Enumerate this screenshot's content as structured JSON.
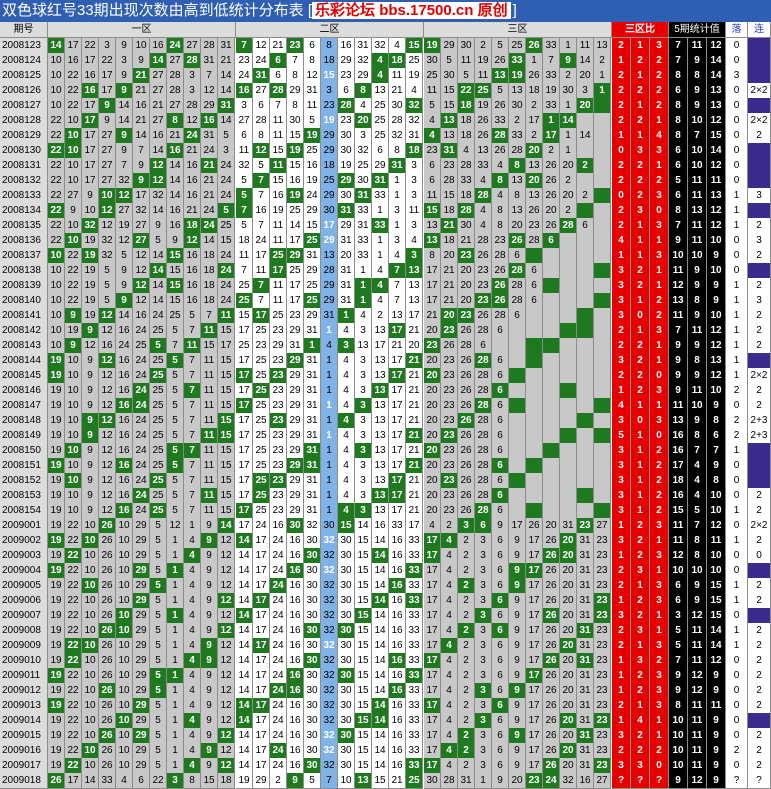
{
  "title": {
    "prefix": "双色球红号33期出现次数由高到低统计分布表 [",
    "brand": "乐彩论坛 bbs.17500.cn 原创",
    "suffix": "]"
  },
  "headers": {
    "issue": "期号",
    "zone1": "一区",
    "zone2": "二区",
    "zone3": "三区",
    "ratio": "三区比",
    "stat5": "5期统计值",
    "luo": "落",
    "lian": "连"
  },
  "rows": [
    {
      "issue": "2008123",
      "ratio": [
        "2",
        "1",
        "3"
      ],
      "stat": [
        "7",
        "11",
        "12"
      ],
      "luo": "0",
      "lian": ""
    },
    {
      "issue": "2008124",
      "ratio": [
        "1",
        "2",
        "2"
      ],
      "stat": [
        "7",
        "9",
        "14"
      ],
      "luo": "0",
      "lian": ""
    },
    {
      "issue": "2008125",
      "ratio": [
        "2",
        "1",
        "2"
      ],
      "stat": [
        "8",
        "8",
        "14"
      ],
      "luo": "3",
      "lian": ""
    },
    {
      "issue": "2008126",
      "ratio": [
        "2",
        "2",
        "2"
      ],
      "stat": [
        "6",
        "9",
        "13"
      ],
      "luo": "0",
      "lian": "2×2"
    },
    {
      "issue": "2008127",
      "ratio": [
        "2",
        "1",
        "2"
      ],
      "stat": [
        "8",
        "9",
        "13"
      ],
      "luo": "0",
      "lian": ""
    },
    {
      "issue": "2008128",
      "ratio": [
        "2",
        "2",
        "1"
      ],
      "stat": [
        "8",
        "10",
        "12"
      ],
      "luo": "0",
      "lian": "2×2"
    },
    {
      "issue": "2008129",
      "ratio": [
        "1",
        "1",
        "4"
      ],
      "stat": [
        "8",
        "7",
        "15"
      ],
      "luo": "0",
      "lian": "2"
    },
    {
      "issue": "2008130",
      "ratio": [
        "0",
        "3",
        "3"
      ],
      "stat": [
        "6",
        "10",
        "14"
      ],
      "luo": "0",
      "lian": ""
    },
    {
      "issue": "2008131",
      "ratio": [
        "2",
        "2",
        "1"
      ],
      "stat": [
        "6",
        "10",
        "12"
      ],
      "luo": "0",
      "lian": ""
    },
    {
      "issue": "2008132",
      "ratio": [
        "2",
        "2",
        "2"
      ],
      "stat": [
        "5",
        "11",
        "11"
      ],
      "luo": "0",
      "lian": ""
    },
    {
      "issue": "2008133",
      "ratio": [
        "0",
        "2",
        "3"
      ],
      "stat": [
        "6",
        "11",
        "13"
      ],
      "luo": "1",
      "lian": "3"
    },
    {
      "issue": "2008134",
      "ratio": [
        "2",
        "3",
        "0"
      ],
      "stat": [
        "8",
        "13",
        "12"
      ],
      "luo": "1",
      "lian": ""
    },
    {
      "issue": "2008135",
      "ratio": [
        "2",
        "1",
        "3"
      ],
      "stat": [
        "7",
        "11",
        "12"
      ],
      "luo": "1",
      "lian": "2"
    },
    {
      "issue": "2008136",
      "ratio": [
        "4",
        "1",
        "1"
      ],
      "stat": [
        "9",
        "11",
        "10"
      ],
      "luo": "0",
      "lian": "3"
    },
    {
      "issue": "2008137",
      "ratio": [
        "1",
        "1",
        "3"
      ],
      "stat": [
        "10",
        "10",
        "9"
      ],
      "luo": "0",
      "lian": "2"
    },
    {
      "issue": "2008138",
      "ratio": [
        "3",
        "2",
        "1"
      ],
      "stat": [
        "11",
        "9",
        "10"
      ],
      "luo": "0",
      "lian": ""
    },
    {
      "issue": "2008139",
      "ratio": [
        "3",
        "2",
        "1"
      ],
      "stat": [
        "12",
        "9",
        "9"
      ],
      "luo": "1",
      "lian": "2"
    },
    {
      "issue": "2008140",
      "ratio": [
        "3",
        "1",
        "2"
      ],
      "stat": [
        "13",
        "8",
        "9"
      ],
      "luo": "1",
      "lian": "3"
    },
    {
      "issue": "2008141",
      "ratio": [
        "3",
        "0",
        "2"
      ],
      "stat": [
        "11",
        "9",
        "10"
      ],
      "luo": "1",
      "lian": "2"
    },
    {
      "issue": "2008142",
      "ratio": [
        "2",
        "1",
        "3"
      ],
      "stat": [
        "7",
        "11",
        "12"
      ],
      "luo": "1",
      "lian": "2"
    },
    {
      "issue": "2008143",
      "ratio": [
        "2",
        "2",
        "1"
      ],
      "stat": [
        "9",
        "9",
        "12"
      ],
      "luo": "1",
      "lian": "2"
    },
    {
      "issue": "2008144",
      "ratio": [
        "3",
        "2",
        "1"
      ],
      "stat": [
        "9",
        "8",
        "13"
      ],
      "luo": "1",
      "lian": ""
    },
    {
      "issue": "2008145",
      "ratio": [
        "2",
        "2",
        "0"
      ],
      "stat": [
        "9",
        "9",
        "12"
      ],
      "luo": "1",
      "lian": "2×2"
    },
    {
      "issue": "2008146",
      "ratio": [
        "1",
        "2",
        "3"
      ],
      "stat": [
        "9",
        "11",
        "10"
      ],
      "luo": "2",
      "lian": "2"
    },
    {
      "issue": "2008147",
      "ratio": [
        "4",
        "1",
        "1"
      ],
      "stat": [
        "11",
        "10",
        "9"
      ],
      "luo": "0",
      "lian": "2"
    },
    {
      "issue": "2008148",
      "ratio": [
        "3",
        "0",
        "3"
      ],
      "stat": [
        "13",
        "9",
        "8"
      ],
      "luo": "2",
      "lian": "2+3"
    },
    {
      "issue": "2008149",
      "ratio": [
        "5",
        "1",
        "0"
      ],
      "stat": [
        "16",
        "8",
        "6"
      ],
      "luo": "2",
      "lian": "2+3"
    },
    {
      "issue": "2008150",
      "ratio": [
        "3",
        "1",
        "2"
      ],
      "stat": [
        "16",
        "7",
        "7"
      ],
      "luo": "1",
      "lian": ""
    },
    {
      "issue": "2008151",
      "ratio": [
        "3",
        "1",
        "2"
      ],
      "stat": [
        "17",
        "4",
        "9"
      ],
      "luo": "0",
      "lian": ""
    },
    {
      "issue": "2008152",
      "ratio": [
        "3",
        "1",
        "2"
      ],
      "stat": [
        "18",
        "4",
        "8"
      ],
      "luo": "0",
      "lian": ""
    },
    {
      "issue": "2008153",
      "ratio": [
        "3",
        "1",
        "2"
      ],
      "stat": [
        "16",
        "4",
        "10"
      ],
      "luo": "0",
      "lian": "2"
    },
    {
      "issue": "2008154",
      "ratio": [
        "3",
        "1",
        "2"
      ],
      "stat": [
        "15",
        "5",
        "10"
      ],
      "luo": "1",
      "lian": "2"
    },
    {
      "issue": "2009001",
      "ratio": [
        "1",
        "2",
        "3"
      ],
      "stat": [
        "11",
        "7",
        "12"
      ],
      "luo": "0",
      "lian": "2×2"
    },
    {
      "issue": "2009002",
      "ratio": [
        "3",
        "2",
        "1"
      ],
      "stat": [
        "11",
        "8",
        "11"
      ],
      "luo": "1",
      "lian": "2"
    },
    {
      "issue": "2009003",
      "ratio": [
        "1",
        "2",
        "3"
      ],
      "stat": [
        "12",
        "8",
        "10"
      ],
      "luo": "0",
      "lian": "0"
    },
    {
      "issue": "2009004",
      "ratio": [
        "2",
        "3",
        "1"
      ],
      "stat": [
        "10",
        "10",
        "10"
      ],
      "luo": "0",
      "lian": ""
    },
    {
      "issue": "2009005",
      "ratio": [
        "2",
        "1",
        "3"
      ],
      "stat": [
        "6",
        "9",
        "15"
      ],
      "luo": "1",
      "lian": "2"
    },
    {
      "issue": "2009006",
      "ratio": [
        "1",
        "2",
        "3"
      ],
      "stat": [
        "6",
        "9",
        "15"
      ],
      "luo": "1",
      "lian": "2"
    },
    {
      "issue": "2009007",
      "ratio": [
        "3",
        "2",
        "1"
      ],
      "stat": [
        "3",
        "12",
        "15"
      ],
      "luo": "0",
      "lian": ""
    },
    {
      "issue": "2009008",
      "ratio": [
        "2",
        "3",
        "1"
      ],
      "stat": [
        "5",
        "11",
        "14"
      ],
      "luo": "1",
      "lian": "2"
    },
    {
      "issue": "2009009",
      "ratio": [
        "2",
        "1",
        "3"
      ],
      "stat": [
        "5",
        "11",
        "14"
      ],
      "luo": "1",
      "lian": "2"
    },
    {
      "issue": "2009010",
      "ratio": [
        "1",
        "3",
        "2"
      ],
      "stat": [
        "7",
        "11",
        "12"
      ],
      "luo": "0",
      "lian": "2"
    },
    {
      "issue": "2009011",
      "ratio": [
        "1",
        "2",
        "3"
      ],
      "stat": [
        "9",
        "12",
        "9"
      ],
      "luo": "0",
      "lian": "2"
    },
    {
      "issue": "2009012",
      "ratio": [
        "1",
        "2",
        "3"
      ],
      "stat": [
        "9",
        "12",
        "9"
      ],
      "luo": "0",
      "lian": "2"
    },
    {
      "issue": "2009013",
      "ratio": [
        "2",
        "1",
        "3"
      ],
      "stat": [
        "8",
        "11",
        "11"
      ],
      "luo": "0",
      "lian": "2"
    },
    {
      "issue": "2009014",
      "ratio": [
        "1",
        "4",
        "1"
      ],
      "stat": [
        "10",
        "11",
        "9"
      ],
      "luo": "0",
      "lian": ""
    },
    {
      "issue": "2009015",
      "ratio": [
        "3",
        "2",
        "1"
      ],
      "stat": [
        "10",
        "11",
        "9"
      ],
      "luo": "0",
      "lian": "2"
    },
    {
      "issue": "2009016",
      "ratio": [
        "2",
        "2",
        "2"
      ],
      "stat": [
        "10",
        "11",
        "9"
      ],
      "luo": "2",
      "lian": "2"
    },
    {
      "issue": "2009017",
      "ratio": [
        "3",
        "3",
        "0"
      ],
      "stat": [
        "10",
        "11",
        "9"
      ],
      "luo": "0",
      "lian": "2"
    },
    {
      "issue": "2009018",
      "ratio": [
        "?",
        "?",
        "?"
      ],
      "stat": [
        "9",
        "12",
        "9"
      ],
      "luo": "?",
      "lian": "?"
    }
  ],
  "grid_rows": [
    "14 17 22 3 9 10 16 24 27 28 31 7 12 21 23 6 8 16 31 32 4 15 19 29 30 2 5 25 26 33 1 11 13 20",
    "10 16 17 22 3 9 14 27 28 31 21 23 24 6 7 8 18 29 32 4 18 25 30 5 11 19 26 33 1 7 9 14 2 20",
    "10 22 16 17 9 21 27 28 3 7 14 24 31 6 8 12 15 23 29 4 11 19 25 30 5 11 13 19 26 33 2 20 1",
    "10 22 16 17 9 21 27 28 3 12 14 16 27 28 29 31 3 6 8 13 21 4 11 15 22 25 5 13 18 19 30 3 1 20",
    "10 22 17 9 14 16 21 27 28 29 31 3 6 7 8 11 23 28 4 25 30 32 5 15 18 19 26 30 2 33 1 20",
    "22 10 17 9 14 21 27 8 12 16 14 27 28 11 30 5 19 23 20 25 28 32 4 13 18 26 33 2 17 1 14",
    "22 10 17 27 9 14 16 21 24 31 5 6 8 11 15 19 29 30 3 25 32 31 4 13 18 26 28 33 2 17 1 14",
    "22 10 17 27 9 7 14 16 21 24 3 11 12 15 19 25 29 30 32 6 8 18 23 31 4 13 26 28 20 2 1",
    "22 10 17 27 7 9 12 14 16 21 24 32 5 11 15 16 18 19 25 29 31 3 6 23 28 33 4 8 13 26 20 2",
    "22 10 17 27 32 9 12 14 16 21 24 5 7 15 16 19 25 29 30 31 1 3 6 28 33 4 8 13 20 26 2",
    "22 27 9 10 12 17 32 14 16 21 24 5 7 16 19 24 29 30 31 33 1 3 11 15 18 28 4 8 13 26 20 2",
    "22 9 10 12 27 32 14 16 21 24 5 7 16 19 25 29 30 31 33 1 3 11 15 18 28 4 8 13 26 20 2",
    "22 10 32 12 19 27 9 16 18 24 25 5 7 11 14 15 17 29 31 33 1 3 13 21 30 4 8 20 23 26 28 6",
    "22 10 19 32 12 27 5 9 12 14 15 18 24 11 17 25 29 31 33 1 3 4 13 18 21 28 23 26 28 6",
    "10 22 19 32 5 12 14 15 16 18 24 11 17 25 29 31 13 20 33 1 4 3 8 20 23 26 28 6",
    "10 22 19 5 9 12 14 15 16 18 24 7 11 17 25 29 28 31 1 4 7 13 17 21 20 23 26 28 6",
    "10 22 19 5 9 12 14 15 16 18 24 25 7 11 17 25 29 31 1 4 7 13 17 21 20 23 26 28 6",
    "10 22 19 5 9 12 14 15 16 18 24 25 7 11 17 25 29 31 1 4 7 13 17 21 20 23 26 28 6",
    "10 9 19 12 14 16 24 25 5 7 11 15 17 25 23 29 31 1 4 2 13 17 21 20 23 26 28 6",
    "10 19 9 12 16 24 25 5 7 11 15 17 25 23 29 31 1 4 3 13 17 21 20 23 26 28 6",
    "10 9 12 16 24 25 5 7 11 15 17 25 23 29 31 1 4 3 13 17 21 20 23 26 28 6",
    "19 10 9 12 16 24 25 5 7 11 15 17 25 23 29 31 1 4 3 13 17 21 20 23 26 28 6",
    "19 10 9 12 16 24 25 5 7 11 15 17 25 23 29 31 1 4 3 13 17 21 20 23 26 28 6",
    "19 10 9 12 16 24 25 5 7 11 15 17 25 23 29 31 1 4 3 13 17 21 20 23 26 28 6",
    "19 10 9 12 16 24 25 5 7 11 15 17 25 23 29 31 1 4 3 13 17 21 20 23 26 28 6",
    "19 10 9 12 16 24 25 5 7 11 15 17 25 23 29 31 1 4 3 13 17 21 20 23 26 28 6",
    "19 10 9 12 16 24 25 5 7 11 15 17 25 23 29 31 1 4 3 13 17 21 20 23 26 28 6",
    "19 10 9 12 16 24 25 5 7 11 15 17 25 23 29 31 1 4 3 13 17 21 20 23 26 28 6",
    "19 10 9 12 16 24 25 5 7 11 15 17 25 23 29 31 1 4 3 13 17 21 20 23 26 28 6",
    "19 10 9 12 16 24 25 5 7 11 15 17 25 23 29 31 1 4 3 13 17 21 20 23 26 28 6",
    "19 10 9 12 16 24 25 5 7 11 15 17 25 23 29 31 1 4 3 13 17 21 20 23 26 28 6",
    "19 10 9 12 16 24 25 5 7 11 15 17 25 23 29 31 1 4 3 13 17 21 20 23 26 28 6",
    "19 22 10 26 10 29 5 12 1 9 14 17 24 16 30 32 30 15 14 16 33 17 4 2 3 6 9 17 26 20 31 23 27 11",
    "19 22 10 26 10 29 5 1 4 9 12 14 17 24 16 30 32 30 15 14 16 33 17 4 2 3 6 9 17 26 20 31 23 27",
    "19 22 10 26 10 29 5 1 4 9 12 14 17 24 16 30 32 30 15 14 16 33 17 4 2 3 6 9 17 26 20 31 23 27",
    "19 22 10 26 10 29 5 1 4 9 12 14 17 24 16 30 32 30 15 14 16 33 17 4 2 3 6 9 17 26 20 31 23 27",
    "19 22 10 26 10 29 5 1 4 9 12 14 17 24 16 30 32 30 15 14 16 33 17 4 2 3 6 9 17 26 20 31 23 27",
    "19 22 10 26 10 29 5 1 4 9 12 14 17 24 16 30 32 30 15 14 16 33 17 4 2 3 6 9 17 26 20 31 23 27",
    "19 22 10 26 10 29 5 1 4 9 12 14 17 24 16 30 32 30 15 14 16 33 17 4 2 3 6 9 17 26 20 31 23 27",
    "19 22 10 26 10 29 5 1 4 9 12 14 17 24 16 30 32 30 15 14 16 33 17 4 2 3 6 9 17 26 20 31 23 27",
    "19 22 10 26 10 29 5 1 4 9 12 14 17 24 16 30 32 30 15 14 16 33 17 4 2 3 6 9 17 26 20 31 23 27",
    "19 22 10 26 10 29 5 1 4 9 12 14 17 24 16 30 32 30 15 14 16 33 17 4 2 3 6 9 17 26 20 31 23 27",
    "19 22 10 26 10 29 5 1 4 9 12 14 17 24 16 30 32 30 15 14 16 33 17 4 2 3 6 9 17 26 20 31 23 27",
    "19 22 10 26 10 29 5 1 4 9 12 14 17 24 16 30 32 30 15 14 16 33 17 4 2 3 6 9 17 26 20 31 23 27",
    "19 22 10 26 10 29 5 1 4 9 12 14 17 24 16 30 32 30 15 14 16 33 17 4 2 3 6 9 17 26 20 31 23 27",
    "19 22 10 26 10 29 5 1 4 9 12 14 17 24 16 30 32 30 15 14 16 33 17 4 2 3 6 9 17 26 20 31 23 27",
    "19 22 10 26 10 29 5 1 4 9 12 14 17 24 16 30 32 30 15 14 16 33 17 4 2 3 6 9 17 26 20 31 23 27",
    "19 22 10 26 10 29 5 1 4 9 12 14 17 24 16 30 32 30 15 14 16 33 17 4 2 3 6 9 17 26 20 31 23 27",
    "19 22 10 26 10 29 5 1 4 9 12 14 17 24 16 30 32 30 15 14 16 33 17 4 2 3 6 9 17 26 20 31 23 27",
    "26 17 14 33 4 6 22 3 8 15 18 19 29 2 9 5 7 10 13 15 21 25 30 28 31 1 9 20 23 24 32 16 27 11"
  ]
}
